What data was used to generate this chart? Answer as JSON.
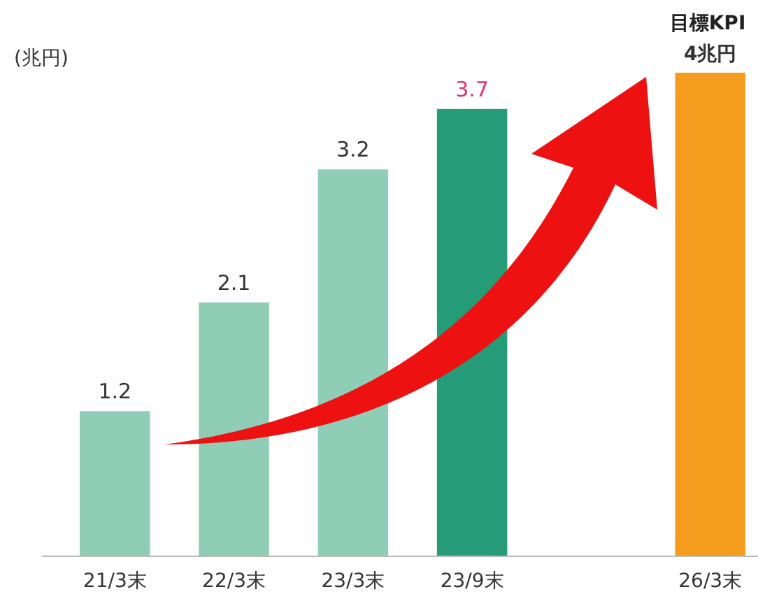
{
  "chart_data": {
    "type": "bar",
    "ylabel": "(兆円)",
    "categories": [
      "21/3末",
      "22/3末",
      "23/3末",
      "23/9末",
      null,
      "26/3末"
    ],
    "values": [
      1.2,
      2.1,
      3.2,
      3.7,
      null,
      4
    ],
    "colors": [
      "#8fcdb7",
      "#8fcdb7",
      "#8fcdb7",
      "#259b78",
      null,
      "#f39c1e"
    ],
    "value_labels": [
      "1.2",
      "2.1",
      "3.2",
      "3.7",
      null,
      "4兆円"
    ],
    "annotations": [
      {
        "text": "目標KPI",
        "x": "26/3末",
        "y": 4
      }
    ]
  }
}
